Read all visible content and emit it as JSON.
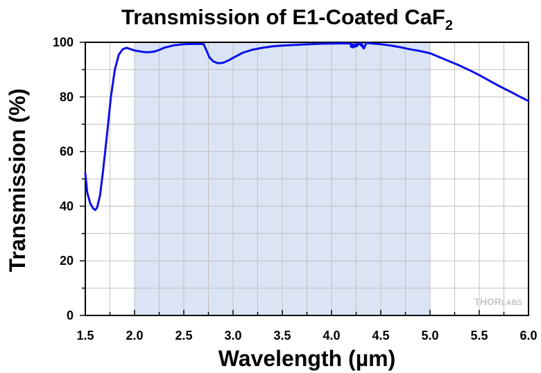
{
  "chart_data": {
    "type": "line",
    "title": {
      "main": "Transmission of E1-Coated CaF",
      "subscript": "2"
    },
    "xlabel": "Wavelength (µm)",
    "ylabel": "Transmission (%)",
    "xlim": [
      1.5,
      6.0
    ],
    "ylim": [
      0,
      100
    ],
    "x_ticks": [
      1.5,
      2.0,
      2.5,
      3.0,
      3.5,
      4.0,
      4.5,
      5.0,
      5.5,
      6.0
    ],
    "x_tick_labels": [
      "1.5",
      "2.0",
      "2.5",
      "3.0",
      "3.5",
      "4.0",
      "4.5",
      "5.0",
      "5.5",
      "6.0"
    ],
    "y_ticks": [
      0,
      20,
      40,
      60,
      80,
      100
    ],
    "y_tick_labels": [
      "0",
      "20",
      "40",
      "60",
      "80",
      "100"
    ],
    "grid": true,
    "highlight_band": {
      "x": [
        2.0,
        5.0
      ],
      "color": "#dbe4f5"
    },
    "watermark": {
      "text_main": "THOR",
      "text_suffix": "LABS"
    },
    "series": [
      {
        "color": "#0a10e8",
        "x": [
          1.5,
          1.52,
          1.55,
          1.58,
          1.6,
          1.62,
          1.65,
          1.68,
          1.72,
          1.76,
          1.8,
          1.84,
          1.88,
          1.92,
          1.96,
          2.0,
          2.05,
          2.1,
          2.15,
          2.2,
          2.25,
          2.3,
          2.4,
          2.5,
          2.6,
          2.7,
          2.73,
          2.76,
          2.8,
          2.85,
          2.9,
          2.95,
          3.0,
          3.1,
          3.2,
          3.3,
          3.4,
          3.5,
          3.7,
          3.9,
          4.1,
          4.19,
          4.2,
          4.21,
          4.22,
          4.23,
          4.24,
          4.25,
          4.26,
          4.27,
          4.28,
          4.29,
          4.3,
          4.31,
          4.32,
          4.33,
          4.34,
          4.35,
          4.36,
          4.38,
          4.4,
          4.5,
          4.6,
          4.7,
          4.8,
          4.9,
          5.0,
          5.1,
          5.2,
          5.3,
          5.4,
          5.5,
          5.6,
          5.7,
          5.8,
          5.9,
          6.0
        ],
        "y": [
          52,
          45,
          41,
          39.2,
          38.6,
          39.5,
          44,
          53,
          66,
          80,
          90,
          95.5,
          97.5,
          98,
          97.5,
          97,
          96.7,
          96.4,
          96.4,
          96.6,
          97.2,
          98,
          98.9,
          99.3,
          99.4,
          99.4,
          97,
          94.5,
          93,
          92.3,
          92.5,
          93.3,
          94.3,
          96.2,
          97.3,
          98,
          98.5,
          98.8,
          99.2,
          99.5,
          99.6,
          99.6,
          98.3,
          99.3,
          98.1,
          99.2,
          98.4,
          99.5,
          98.6,
          99.6,
          99.3,
          99.6,
          98.8,
          99.4,
          98,
          97.8,
          98.7,
          99.6,
          99.7,
          99.7,
          99.6,
          99.3,
          98.8,
          98.2,
          97.4,
          96.8,
          96,
          94.5,
          93,
          91.5,
          89.8,
          88,
          86,
          84,
          82.2,
          80.3,
          78.5
        ]
      }
    ]
  }
}
